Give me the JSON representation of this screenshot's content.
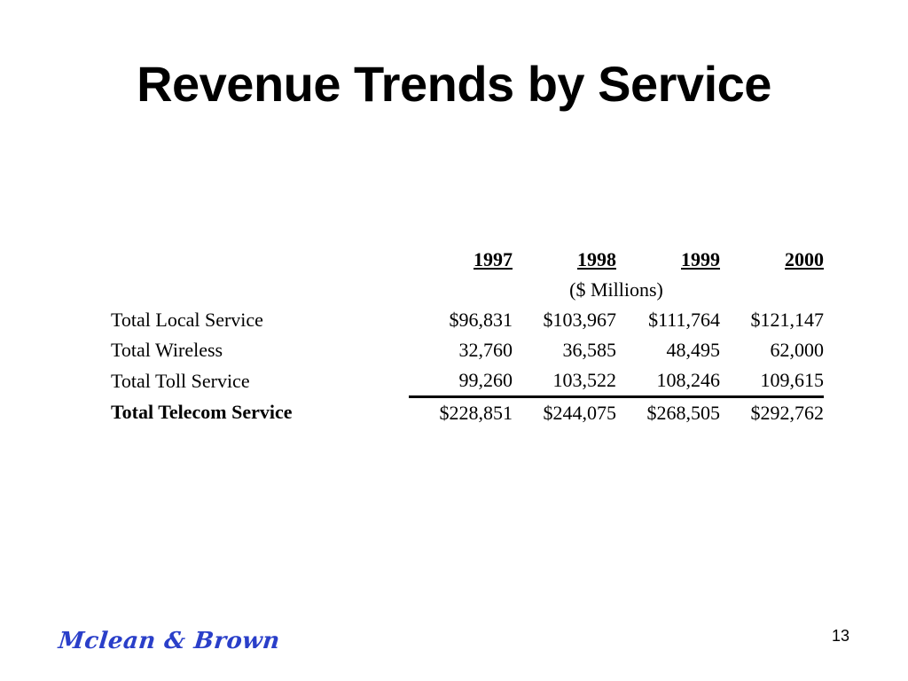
{
  "slide": {
    "title": "Revenue Trends by Service",
    "page_number": "13",
    "logo_text": "Mclean & Brown",
    "brand_color": "#2a3fc9"
  },
  "table": {
    "years": [
      "1997",
      "1998",
      "1999",
      "2000"
    ],
    "units": "($ Millions)",
    "rows": [
      {
        "label": "Total Local Service",
        "values": [
          "$96,831",
          "$103,967",
          "$111,764",
          "$121,147"
        ]
      },
      {
        "label": "Total Wireless",
        "values": [
          "32,760",
          "36,585",
          "48,495",
          "62,000"
        ]
      },
      {
        "label": "Total Toll Service",
        "values": [
          "99,260",
          "103,522",
          "108,246",
          "109,615"
        ]
      }
    ],
    "total": {
      "label": "Total Telecom Service",
      "values": [
        "$228,851",
        "$244,075",
        "$268,505",
        "$292,762"
      ]
    }
  }
}
